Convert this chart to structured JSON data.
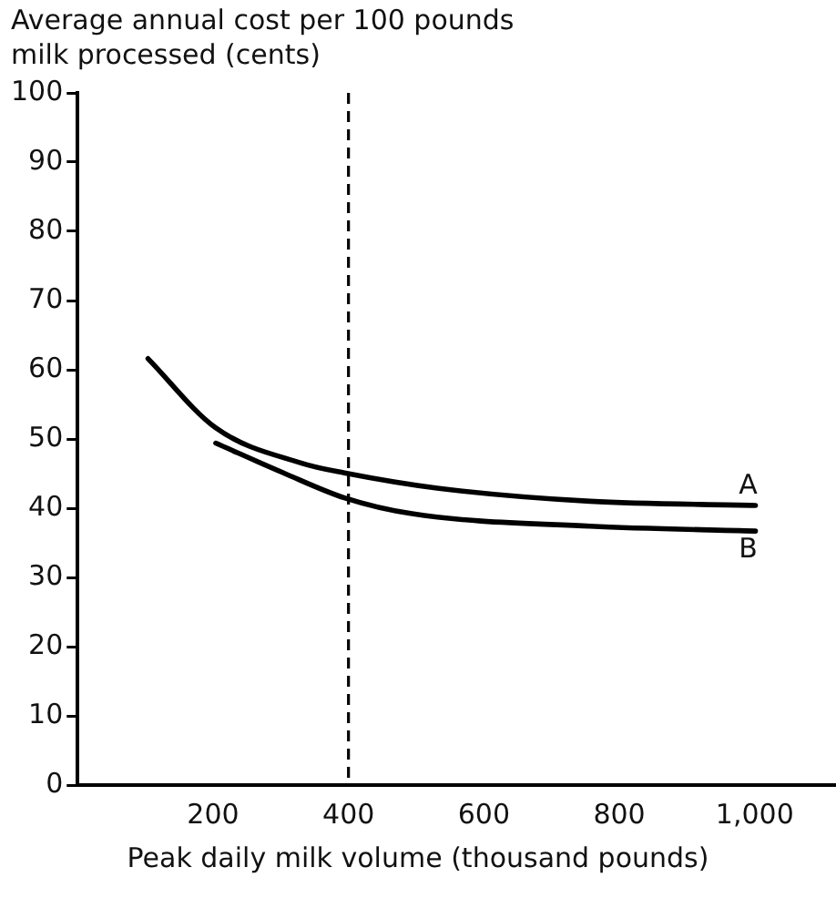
{
  "chart_data": {
    "type": "line",
    "ylabel": "Average annual cost per 100 pounds milk processed (cents)",
    "xlabel": "Peak daily milk volume (thousand pounds)",
    "xlim": [
      0,
      1120
    ],
    "xticks": [
      200,
      400,
      {
        "value": 600,
        "label": "600"
      },
      800,
      {
        "value": 1000,
        "label": "1,000"
      }
    ],
    "ylim": [
      0,
      100
    ],
    "yticks": [
      0,
      10,
      20,
      30,
      40,
      50,
      60,
      70,
      80,
      90,
      100
    ],
    "grid": false,
    "legend": false,
    "marker": "none",
    "line_style": "solid",
    "series": [
      {
        "name": "A",
        "color": "#000000",
        "x": [
          104,
          204,
          331,
          394,
          531,
          757,
          1001
        ],
        "values": [
          61.6,
          51.6,
          46.5,
          45.1,
          42.9,
          41.0,
          40.4
        ]
      },
      {
        "name": "B",
        "color": "#000000",
        "x": [
          204,
          304,
          394,
          494,
          757,
          1001
        ],
        "values": [
          49.4,
          45.1,
          41.5,
          39.2,
          37.4,
          36.7
        ]
      }
    ],
    "ref_lines": [
      {
        "axis": "x",
        "value": 400,
        "line_style": "dashed",
        "color": "#000000"
      }
    ]
  }
}
